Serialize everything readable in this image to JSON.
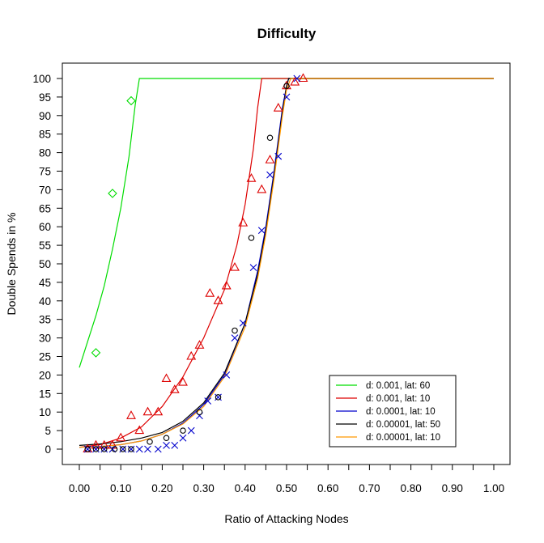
{
  "chart_data": {
    "type": "scatter",
    "title": "Difficulty",
    "xlabel": "Ratio of Attacking Nodes",
    "ylabel": "Double Spends in %",
    "xlim": [
      0,
      1
    ],
    "ylim": [
      0,
      100
    ],
    "xticks": [
      "0.00",
      "0.10",
      "0.20",
      "0.30",
      "0.40",
      "0.50",
      "0.60",
      "0.70",
      "0.80",
      "0.90",
      "1.00"
    ],
    "yticks": [
      "0",
      "5",
      "10",
      "15",
      "20",
      "25",
      "30",
      "35",
      "40",
      "45",
      "50",
      "55",
      "60",
      "65",
      "70",
      "75",
      "80",
      "85",
      "90",
      "95",
      "100"
    ],
    "legend_position": "bottom-right",
    "series": [
      {
        "name": "d: 0.001, lat: 60",
        "color": "#00dd00",
        "marker": "diamond",
        "points": [
          [
            0.04,
            26
          ],
          [
            0.08,
            69
          ],
          [
            0.125,
            94
          ]
        ],
        "curve": [
          [
            0.0,
            22
          ],
          [
            0.02,
            29
          ],
          [
            0.04,
            36
          ],
          [
            0.06,
            44
          ],
          [
            0.08,
            54
          ],
          [
            0.1,
            65
          ],
          [
            0.12,
            79
          ],
          [
            0.135,
            93
          ],
          [
            0.145,
            100
          ],
          [
            1.0,
            100
          ]
        ]
      },
      {
        "name": "d: 0.001, lat: 10",
        "color": "#dd0000",
        "marker": "triangle",
        "points": [
          [
            0.02,
            0
          ],
          [
            0.04,
            1
          ],
          [
            0.06,
            1
          ],
          [
            0.08,
            1
          ],
          [
            0.1,
            3
          ],
          [
            0.125,
            9
          ],
          [
            0.145,
            5
          ],
          [
            0.165,
            10
          ],
          [
            0.19,
            10
          ],
          [
            0.21,
            19
          ],
          [
            0.23,
            16
          ],
          [
            0.25,
            18
          ],
          [
            0.27,
            25
          ],
          [
            0.29,
            28
          ],
          [
            0.315,
            42
          ],
          [
            0.335,
            40
          ],
          [
            0.355,
            44
          ],
          [
            0.375,
            49
          ],
          [
            0.395,
            61
          ],
          [
            0.415,
            73
          ],
          [
            0.44,
            70
          ],
          [
            0.46,
            78
          ],
          [
            0.48,
            92
          ],
          [
            0.5,
            98
          ],
          [
            0.52,
            99
          ],
          [
            0.54,
            100
          ]
        ],
        "curve": [
          [
            0.0,
            0.5
          ],
          [
            0.05,
            1.2
          ],
          [
            0.1,
            3
          ],
          [
            0.15,
            6
          ],
          [
            0.2,
            11.5
          ],
          [
            0.25,
            19.5
          ],
          [
            0.3,
            30
          ],
          [
            0.35,
            43
          ],
          [
            0.38,
            55
          ],
          [
            0.4,
            66
          ],
          [
            0.42,
            81
          ],
          [
            0.43,
            92
          ],
          [
            0.44,
            100
          ],
          [
            0.55,
            100
          ],
          [
            1.0,
            100
          ]
        ]
      },
      {
        "name": "d: 0.0001, lat: 10",
        "color": "#0000cc",
        "marker": "x",
        "points": [
          [
            0.02,
            0
          ],
          [
            0.04,
            0
          ],
          [
            0.06,
            0
          ],
          [
            0.08,
            0
          ],
          [
            0.105,
            0
          ],
          [
            0.125,
            0
          ],
          [
            0.145,
            0
          ],
          [
            0.165,
            0
          ],
          [
            0.19,
            0
          ],
          [
            0.21,
            1
          ],
          [
            0.23,
            1
          ],
          [
            0.25,
            3
          ],
          [
            0.27,
            5
          ],
          [
            0.29,
            9
          ],
          [
            0.31,
            13
          ],
          [
            0.335,
            14
          ],
          [
            0.355,
            20
          ],
          [
            0.375,
            30
          ],
          [
            0.395,
            34
          ],
          [
            0.42,
            49
          ],
          [
            0.44,
            59
          ],
          [
            0.46,
            74
          ],
          [
            0.48,
            79
          ],
          [
            0.5,
            95
          ],
          [
            0.525,
            100
          ]
        ],
        "curve": [
          [
            0.0,
            0.5
          ],
          [
            0.05,
            0.7
          ],
          [
            0.1,
            1.2
          ],
          [
            0.15,
            2.2
          ],
          [
            0.2,
            4
          ],
          [
            0.25,
            7
          ],
          [
            0.3,
            12
          ],
          [
            0.35,
            20
          ],
          [
            0.4,
            34
          ],
          [
            0.43,
            48
          ],
          [
            0.45,
            60
          ],
          [
            0.47,
            75
          ],
          [
            0.49,
            92
          ],
          [
            0.5,
            98
          ],
          [
            0.505,
            100
          ],
          [
            1.0,
            100
          ]
        ]
      },
      {
        "name": "d: 0.00001, lat: 50",
        "color": "#000000",
        "marker": "circle",
        "points": [
          [
            0.02,
            0
          ],
          [
            0.04,
            0
          ],
          [
            0.06,
            0
          ],
          [
            0.085,
            0
          ],
          [
            0.105,
            0
          ],
          [
            0.125,
            0
          ],
          [
            0.17,
            2
          ],
          [
            0.21,
            3
          ],
          [
            0.25,
            5
          ],
          [
            0.29,
            10
          ],
          [
            0.335,
            14
          ],
          [
            0.375,
            32
          ],
          [
            0.415,
            57
          ],
          [
            0.46,
            84
          ],
          [
            0.5,
            98
          ]
        ],
        "curve": [
          [
            0.0,
            1
          ],
          [
            0.05,
            1.4
          ],
          [
            0.1,
            2
          ],
          [
            0.15,
            3
          ],
          [
            0.2,
            4.5
          ],
          [
            0.25,
            7.5
          ],
          [
            0.3,
            12.5
          ],
          [
            0.35,
            20.5
          ],
          [
            0.4,
            34
          ],
          [
            0.43,
            47
          ],
          [
            0.45,
            59
          ],
          [
            0.47,
            74
          ],
          [
            0.49,
            91
          ],
          [
            0.5,
            98
          ],
          [
            0.505,
            100
          ],
          [
            1.0,
            100
          ]
        ]
      },
      {
        "name": "d: 0.00001, lat: 10",
        "color": "#ff9900",
        "marker": "none",
        "points": [],
        "curve": [
          [
            0.0,
            0.5
          ],
          [
            0.05,
            0.7
          ],
          [
            0.1,
            1.2
          ],
          [
            0.15,
            2.2
          ],
          [
            0.2,
            4
          ],
          [
            0.25,
            6.8
          ],
          [
            0.3,
            11.5
          ],
          [
            0.35,
            19.5
          ],
          [
            0.4,
            33
          ],
          [
            0.43,
            46
          ],
          [
            0.45,
            58
          ],
          [
            0.47,
            73
          ],
          [
            0.49,
            90
          ],
          [
            0.5,
            97
          ],
          [
            0.51,
            100
          ],
          [
            1.0,
            100
          ]
        ]
      }
    ]
  }
}
